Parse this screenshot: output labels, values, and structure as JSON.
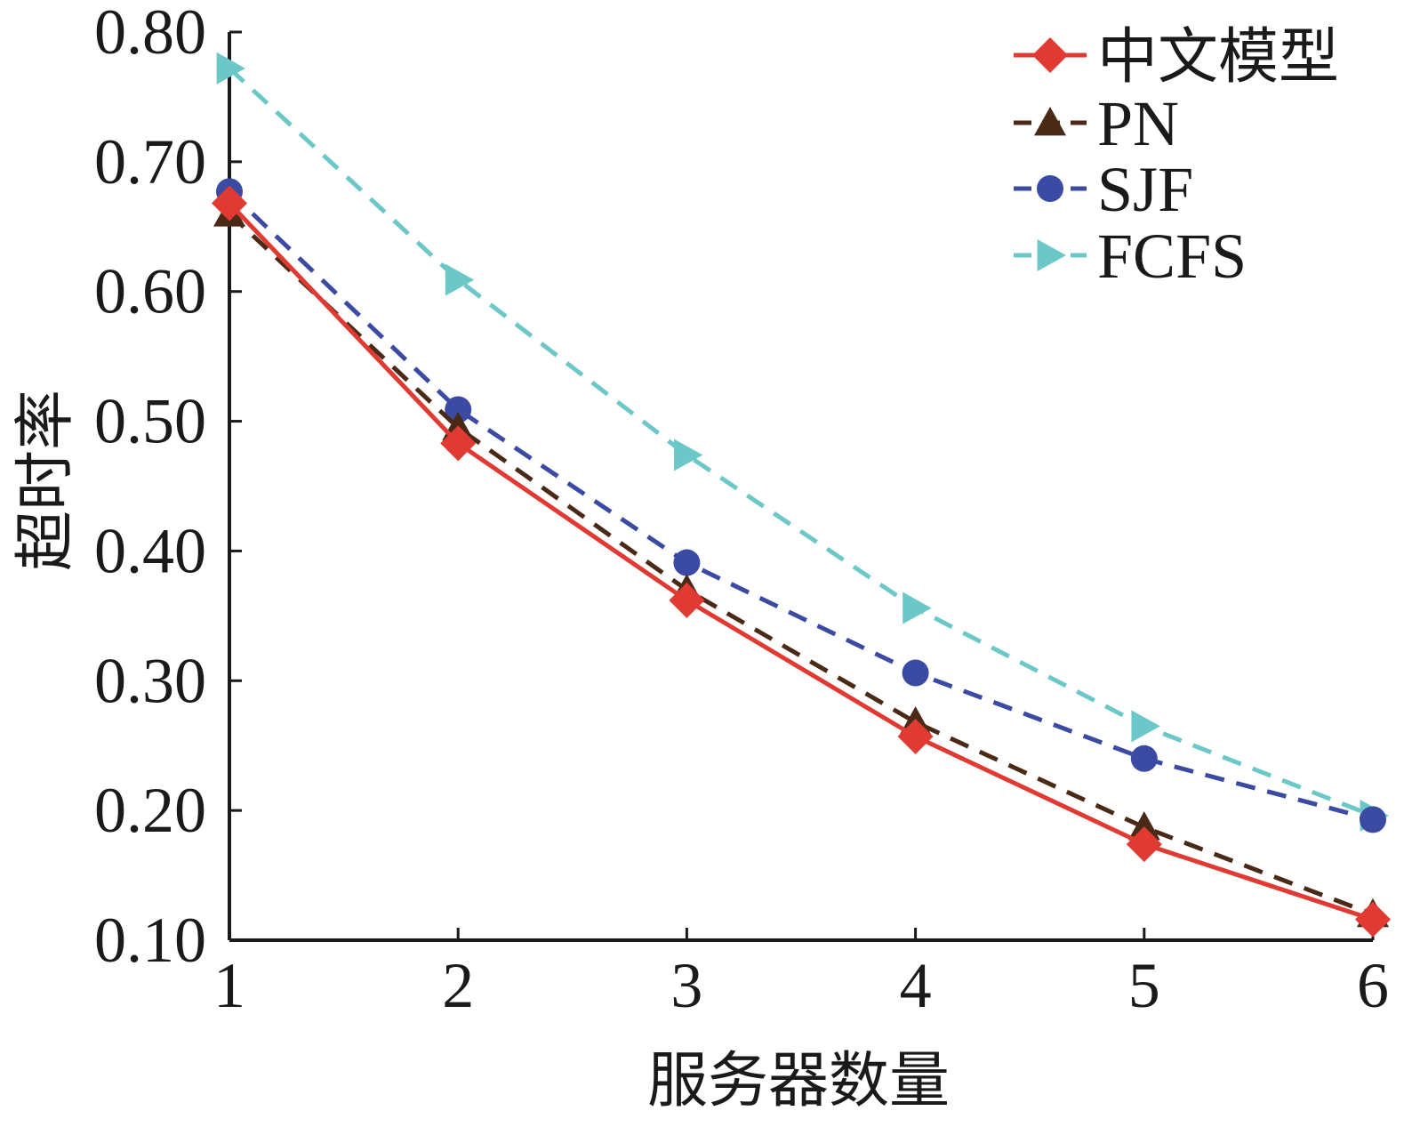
{
  "chart_data": {
    "type": "line",
    "xlabel": "服务器数量",
    "ylabel": "超时率",
    "x": [
      1,
      2,
      3,
      4,
      5,
      6
    ],
    "x_tick_labels": [
      "1",
      "2",
      "3",
      "4",
      "5",
      "6"
    ],
    "y_tick_labels": [
      "0.10",
      "0.20",
      "0.30",
      "0.40",
      "0.50",
      "0.60",
      "0.70",
      "0.80"
    ],
    "ylim": [
      0.1,
      0.8
    ],
    "xlim": [
      1,
      6
    ],
    "grid": false,
    "legend_position": "top-right",
    "series": [
      {
        "name": "中文模型",
        "values": [
          0.668,
          0.483,
          0.362,
          0.257,
          0.174,
          0.116
        ],
        "color": "#e03a33",
        "dash": "solid",
        "marker": "diamond"
      },
      {
        "name": "PN",
        "values": [
          0.66,
          0.495,
          0.37,
          0.268,
          0.187,
          0.12
        ],
        "color": "#4a2a17",
        "dash": "dashed",
        "marker": "triangle-up"
      },
      {
        "name": "SJF",
        "values": [
          0.677,
          0.509,
          0.391,
          0.306,
          0.24,
          0.193
        ],
        "color": "#3b4aa3",
        "dash": "dashed",
        "marker": "circle"
      },
      {
        "name": "FCFS",
        "values": [
          0.772,
          0.609,
          0.474,
          0.356,
          0.265,
          0.196
        ],
        "color": "#6cc8c8",
        "dash": "dashed",
        "marker": "triangle-right"
      }
    ]
  }
}
